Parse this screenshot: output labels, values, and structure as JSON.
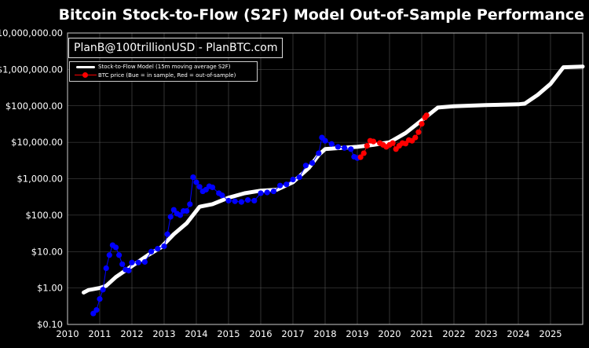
{
  "title": "Bitcoin Stock-to-Flow (S2F) Model Out-of-Sample Performance",
  "watermark": "PlanB@100trillionUSD - PlanBTC.com",
  "legend": {
    "items": [
      {
        "label": "Stock-to-Flow Model (15m moving average S2F)",
        "kind": "line",
        "color": "#ffffff"
      },
      {
        "label": "BTC price (Bue = in sample, Red = out-of-sample)",
        "kind": "marker",
        "color": "#ff0000"
      }
    ]
  },
  "chart_data": {
    "type": "line",
    "title": "Bitcoin Stock-to-Flow (S2F) Model Out-of-Sample Performance",
    "y_scale": "log",
    "xlim": [
      2010,
      2026
    ],
    "ylim": [
      0.1,
      10000000
    ],
    "x_ticks": [
      "2010",
      "2011",
      "2012",
      "2013",
      "2014",
      "2015",
      "2016",
      "2017",
      "2018",
      "2019",
      "2020",
      "2021",
      "2022",
      "2023",
      "2024",
      "2025"
    ],
    "y_ticks": [
      {
        "value": 0.1,
        "label": "$0.10"
      },
      {
        "value": 1,
        "label": "$1.00"
      },
      {
        "value": 10,
        "label": "$10.00"
      },
      {
        "value": 100,
        "label": "$100.00"
      },
      {
        "value": 1000,
        "label": "$1,000.00"
      },
      {
        "value": 10000,
        "label": "$10,000.00"
      },
      {
        "value": 100000,
        "label": "$100,000.00"
      },
      {
        "value": 1000000,
        "label": "$1,000,000.00"
      },
      {
        "value": 10000000,
        "label": "$10,000,000.00"
      }
    ],
    "grid": true,
    "series": [
      {
        "name": "Stock-to-Flow Model (15m moving average S2F)",
        "color": "#ffffff",
        "style": "line",
        "points": [
          [
            2010.5,
            0.75
          ],
          [
            2010.65,
            0.88
          ],
          [
            2011.0,
            1.0
          ],
          [
            2011.2,
            1.15
          ],
          [
            2011.5,
            2.0
          ],
          [
            2012.0,
            4.0
          ],
          [
            2012.5,
            8.0
          ],
          [
            2012.9,
            13.0
          ],
          [
            2013.3,
            30.0
          ],
          [
            2013.7,
            60.0
          ],
          [
            2014.1,
            170.0
          ],
          [
            2014.5,
            200.0
          ],
          [
            2015.0,
            300.0
          ],
          [
            2015.5,
            400.0
          ],
          [
            2016.0,
            470.0
          ],
          [
            2016.5,
            500.0
          ],
          [
            2017.0,
            800.0
          ],
          [
            2017.5,
            2000.0
          ],
          [
            2017.8,
            4500.0
          ],
          [
            2018.0,
            6500.0
          ],
          [
            2018.5,
            7000.0
          ],
          [
            2019.0,
            7500.0
          ],
          [
            2019.5,
            8500.0
          ],
          [
            2020.0,
            10000.0
          ],
          [
            2020.5,
            18000.0
          ],
          [
            2021.0,
            40000.0
          ],
          [
            2021.5,
            90000.0
          ],
          [
            2022.0,
            98000.0
          ],
          [
            2023.0,
            105000.0
          ],
          [
            2024.0,
            110000.0
          ],
          [
            2024.2,
            115000.0
          ],
          [
            2024.6,
            200000.0
          ],
          [
            2025.0,
            400000.0
          ],
          [
            2025.4,
            1150000.0
          ],
          [
            2026.0,
            1200000.0
          ]
        ]
      },
      {
        "name": "BTC price (in sample)",
        "color": "#0000ff",
        "style": "marker-line",
        "points": [
          [
            2010.8,
            0.2
          ],
          [
            2010.9,
            0.25
          ],
          [
            2011.0,
            0.5
          ],
          [
            2011.1,
            0.9
          ],
          [
            2011.2,
            3.5
          ],
          [
            2011.3,
            8.0
          ],
          [
            2011.4,
            15.0
          ],
          [
            2011.5,
            13.0
          ],
          [
            2011.6,
            8.0
          ],
          [
            2011.7,
            4.5
          ],
          [
            2011.8,
            3.2
          ],
          [
            2011.9,
            3.0
          ],
          [
            2012.0,
            5.0
          ],
          [
            2012.2,
            5.0
          ],
          [
            2012.4,
            5.2
          ],
          [
            2012.6,
            10.0
          ],
          [
            2012.8,
            12.0
          ],
          [
            2013.0,
            14.0
          ],
          [
            2013.1,
            30.0
          ],
          [
            2013.2,
            90.0
          ],
          [
            2013.3,
            140.0
          ],
          [
            2013.4,
            110.0
          ],
          [
            2013.5,
            100.0
          ],
          [
            2013.6,
            130.0
          ],
          [
            2013.7,
            130.0
          ],
          [
            2013.8,
            200.0
          ],
          [
            2013.9,
            1100.0
          ],
          [
            2014.0,
            800.0
          ],
          [
            2014.1,
            600.0
          ],
          [
            2014.2,
            450.0
          ],
          [
            2014.3,
            500.0
          ],
          [
            2014.4,
            620.0
          ],
          [
            2014.5,
            580.0
          ],
          [
            2014.7,
            400.0
          ],
          [
            2014.8,
            350.0
          ],
          [
            2015.0,
            250.0
          ],
          [
            2015.2,
            240.0
          ],
          [
            2015.4,
            230.0
          ],
          [
            2015.6,
            260.0
          ],
          [
            2015.8,
            250.0
          ],
          [
            2016.0,
            400.0
          ],
          [
            2016.2,
            420.0
          ],
          [
            2016.4,
            450.0
          ],
          [
            2016.6,
            650.0
          ],
          [
            2016.8,
            700.0
          ],
          [
            2017.0,
            950.0
          ],
          [
            2017.2,
            1100.0
          ],
          [
            2017.4,
            2300.0
          ],
          [
            2017.6,
            2700.0
          ],
          [
            2017.8,
            5000.0
          ],
          [
            2017.9,
            13500.0
          ],
          [
            2018.0,
            11000.0
          ],
          [
            2018.2,
            9000.0
          ],
          [
            2018.4,
            7500.0
          ],
          [
            2018.6,
            7000.0
          ],
          [
            2018.8,
            6500.0
          ],
          [
            2018.9,
            4000.0
          ],
          [
            2019.0,
            3700.0
          ]
        ]
      },
      {
        "name": "BTC price (out-of-sample)",
        "color": "#ff0000",
        "style": "marker-line",
        "points": [
          [
            2019.1,
            3900.0
          ],
          [
            2019.2,
            5000.0
          ],
          [
            2019.3,
            8000.0
          ],
          [
            2019.4,
            11000.0
          ],
          [
            2019.5,
            10500.0
          ],
          [
            2019.7,
            9500.0
          ],
          [
            2019.8,
            8500.0
          ],
          [
            2019.9,
            7500.0
          ],
          [
            2020.0,
            8500.0
          ],
          [
            2020.1,
            9500.0
          ],
          [
            2020.2,
            6500.0
          ],
          [
            2020.3,
            8000.0
          ],
          [
            2020.4,
            9500.0
          ],
          [
            2020.5,
            9200.0
          ],
          [
            2020.6,
            11500.0
          ],
          [
            2020.7,
            11000.0
          ],
          [
            2020.8,
            13500.0
          ],
          [
            2020.9,
            19000.0
          ],
          [
            2021.0,
            32000.0
          ],
          [
            2021.1,
            48000.0
          ],
          [
            2021.15,
            55000.0
          ]
        ]
      }
    ]
  }
}
